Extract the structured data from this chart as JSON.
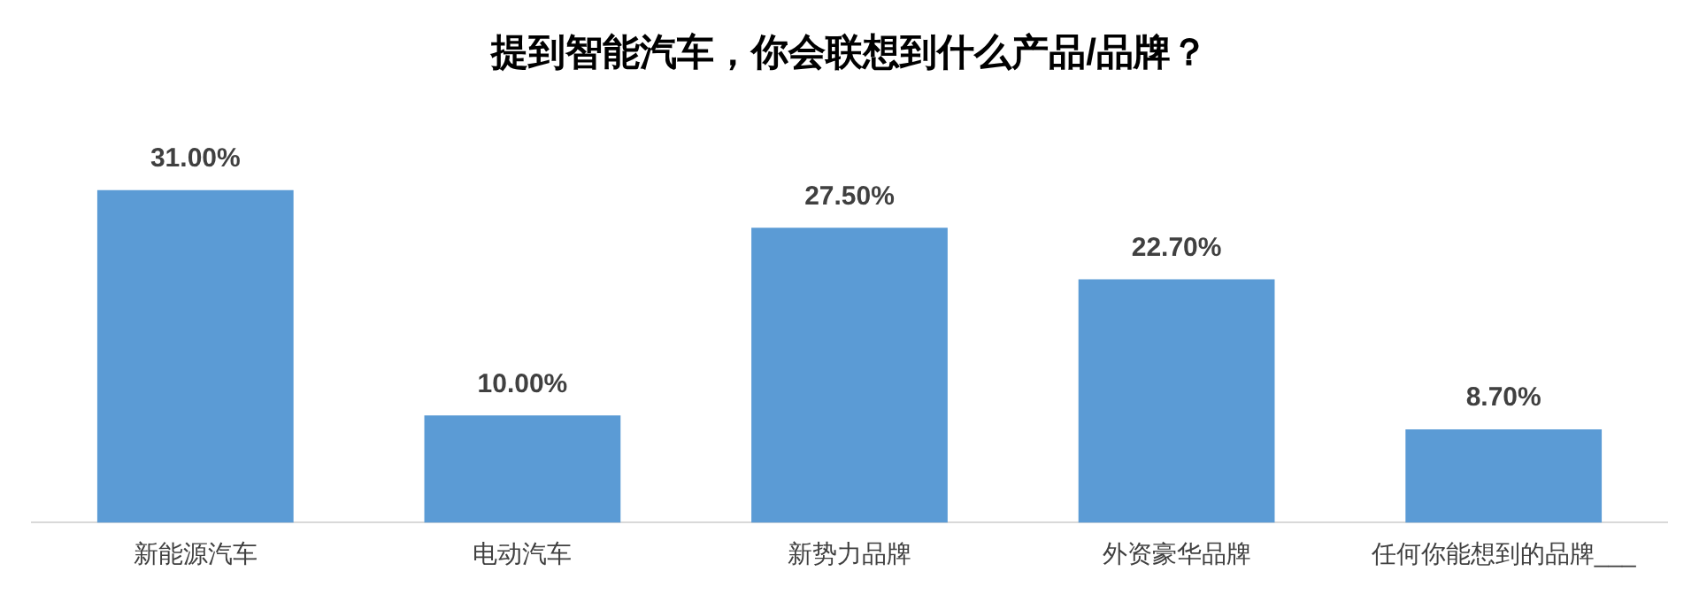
{
  "chart_data": {
    "type": "bar",
    "title": "提到智能汽车，你会联想到什么产品/品牌？",
    "categories": [
      "新能源汽车",
      "电动汽车",
      "新势力品牌",
      "外资豪华品牌",
      "任何你能想到的品牌___"
    ],
    "values": [
      31,
      10,
      27.5,
      22.7,
      8.7
    ],
    "value_labels": [
      "31.00%",
      "10.00%",
      "27.50%",
      "22.70%",
      "8.70%"
    ],
    "color": "#5b9bd5",
    "grid": false,
    "legend": false
  }
}
